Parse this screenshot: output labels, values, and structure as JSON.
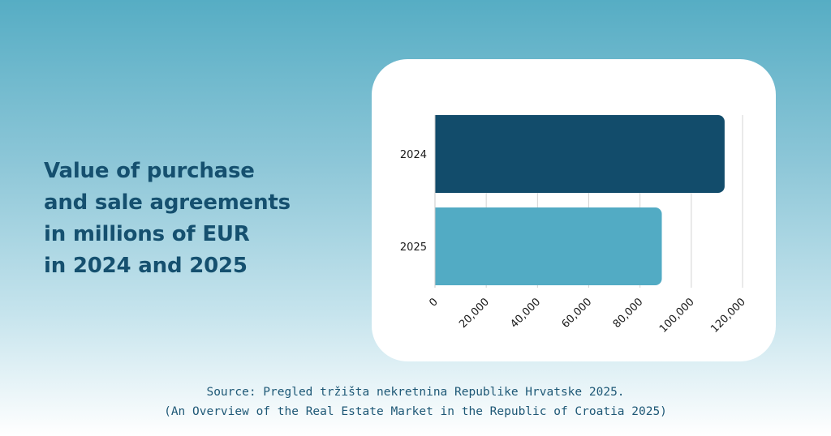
{
  "title_lines": [
    "Value of purchase",
    "and sale agreements",
    "in millions of EUR",
    "in 2024 and 2025"
  ],
  "source": {
    "line1": "Source: Pregled tržišta nekretnina Republike Hrvatske 2025.",
    "line2": "(An Overview of the Real Estate Market in the Republic of Croatia 2025)"
  },
  "chart_data": {
    "type": "bar",
    "orientation": "horizontal",
    "categories": [
      "2024",
      "2025"
    ],
    "values": [
      113000,
      88500
    ],
    "bar_colors": [
      "#124c6b",
      "#52abc4"
    ],
    "xlim": [
      0,
      120000
    ],
    "ticks": [
      0,
      20000,
      40000,
      60000,
      80000,
      100000,
      120000
    ],
    "tick_labels": [
      "0",
      "20,000",
      "40,000",
      "60,000",
      "80,000",
      "100,000",
      "120,000"
    ],
    "grid": true,
    "legend": "none"
  }
}
